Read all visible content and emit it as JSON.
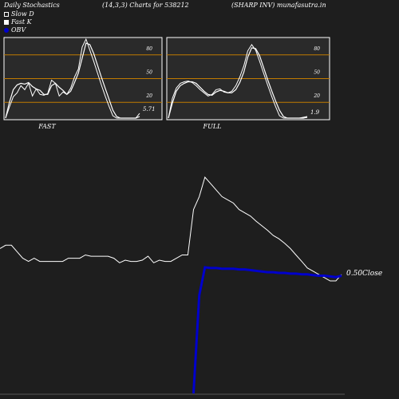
{
  "header": {
    "left": "Daily Stochastics",
    "middle": "(14,3,3) Charts for 538212",
    "right": "(SHARP INV) munafasutra.in"
  },
  "legend": [
    {
      "label": "Slow  D",
      "color": "#ffffff",
      "filled": false
    },
    {
      "label": "Fast K",
      "color": "#ffffff",
      "filled": false
    },
    {
      "label": "OBV",
      "color": "#0000cc",
      "filled": true
    }
  ],
  "colors": {
    "background": "#1e1e1e",
    "panel": "#2a2a2a",
    "band_line": "#c07a00",
    "stoch_line": "#ffffff",
    "price_line": "#ffffff",
    "obv_line": "#0000cc"
  },
  "chart_data": [
    {
      "type": "line",
      "title": "FAST",
      "ylim": [
        0,
        100
      ],
      "levels": [
        20,
        50,
        80
      ],
      "level_labels": [
        "20",
        "50",
        "80"
      ],
      "last_value_label": "5.71",
      "series": [
        {
          "values": [
            0,
            14,
            27,
            32,
            41,
            36,
            44,
            28,
            37,
            30,
            29,
            31,
            48,
            44,
            28,
            33,
            30,
            38,
            52,
            62,
            90,
            100,
            86,
            72,
            57,
            42,
            28,
            15,
            3,
            0,
            0,
            0,
            0,
            0,
            0,
            6
          ]
        },
        {
          "values": [
            0,
            20,
            36,
            42,
            44,
            43,
            45,
            40,
            37,
            35,
            30,
            30,
            41,
            44,
            39,
            35,
            30,
            34,
            45,
            57,
            76,
            95,
            93,
            82,
            67,
            52,
            38,
            24,
            10,
            2,
            0,
            0,
            0,
            0,
            0,
            2
          ]
        }
      ]
    },
    {
      "type": "line",
      "title": "FULL",
      "ylim": [
        0,
        100
      ],
      "levels": [
        20,
        50,
        80
      ],
      "level_labels": [
        "20",
        "50",
        "80"
      ],
      "last_value_label": "1.9",
      "series": [
        {
          "values": [
            0,
            25,
            38,
            44,
            46,
            47,
            45,
            41,
            36,
            32,
            28,
            30,
            36,
            37,
            33,
            32,
            34,
            41,
            52,
            66,
            85,
            93,
            86,
            72,
            57,
            42,
            28,
            15,
            3,
            0,
            0,
            0,
            0,
            0,
            1,
            2
          ]
        },
        {
          "values": [
            0,
            19,
            34,
            41,
            44,
            46,
            46,
            44,
            39,
            34,
            30,
            29,
            33,
            35,
            34,
            32,
            32,
            36,
            45,
            58,
            77,
            89,
            88,
            79,
            64,
            49,
            35,
            22,
            10,
            2,
            0,
            0,
            0,
            0,
            0,
            1
          ]
        }
      ]
    },
    {
      "type": "line",
      "title": "",
      "last_value_label": "0.50",
      "last_value_suffix": "Close",
      "series": [
        {
          "name": "Close",
          "values": [
            0.54,
            0.545,
            0.545,
            0.535,
            0.525,
            0.52,
            0.525,
            0.52,
            0.52,
            0.52,
            0.52,
            0.52,
            0.525,
            0.525,
            0.525,
            0.53,
            0.528,
            0.528,
            0.528,
            0.528,
            0.525,
            0.518,
            0.522,
            0.52,
            0.52,
            0.522,
            0.528,
            0.518,
            0.522,
            0.52,
            0.52,
            0.525,
            0.53,
            0.53,
            0.6,
            0.62,
            0.65,
            0.64,
            0.63,
            0.62,
            0.615,
            0.61,
            0.6,
            0.595,
            0.59,
            0.582,
            0.575,
            0.568,
            0.56,
            0.555,
            0.548,
            0.54,
            0.53,
            0.52,
            0.51,
            0.505,
            0.5,
            0.495,
            0.49,
            0.49,
            0.5
          ]
        },
        {
          "name": "OBV",
          "values": [
            null,
            null,
            null,
            null,
            null,
            null,
            null,
            null,
            null,
            null,
            null,
            null,
            null,
            null,
            null,
            null,
            null,
            null,
            null,
            null,
            null,
            null,
            null,
            null,
            null,
            null,
            null,
            null,
            null,
            null,
            null,
            null,
            null,
            null,
            -80,
            60,
            100,
            99,
            99,
            98,
            98,
            98,
            97,
            97,
            96,
            95,
            94,
            93,
            93,
            92,
            92,
            91,
            91,
            90,
            90,
            89,
            88,
            88,
            87,
            86,
            88
          ]
        }
      ]
    }
  ]
}
